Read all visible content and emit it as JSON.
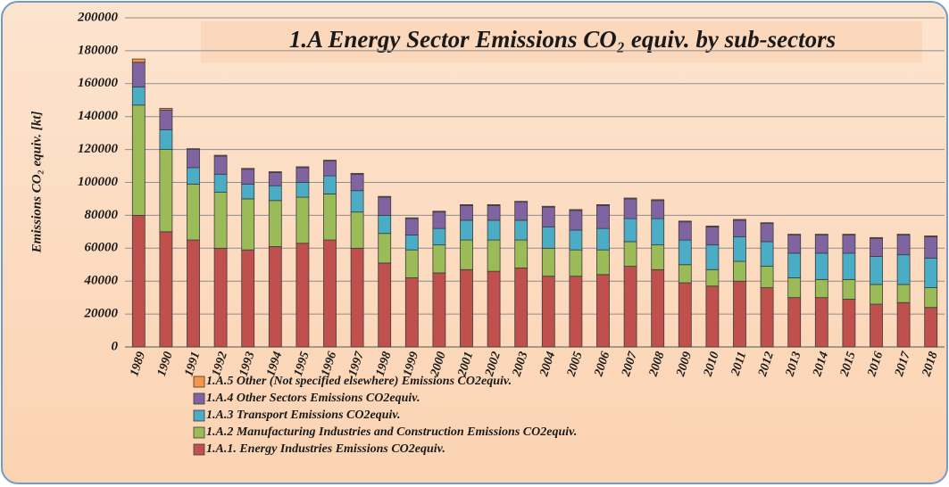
{
  "chart_data": {
    "type": "stacked_bar",
    "title": "1.A Energy Sector Emissions CO₂ equiv. by sub-sectors",
    "y_label": "Emissions CO₂ equiv. [kt]",
    "categories": [
      "1989",
      "1990",
      "1991",
      "1992",
      "1993",
      "1994",
      "1995",
      "1996",
      "1997",
      "1998",
      "1999",
      "2000",
      "2001",
      "2002",
      "2003",
      "2004",
      "2005",
      "2006",
      "2007",
      "2008",
      "2009",
      "2010",
      "2011",
      "2012",
      "2013",
      "2014",
      "2015",
      "2016",
      "2017",
      "2018"
    ],
    "series": [
      {
        "name": "1.A.1. Energy Industries Emissions CO2equiv.",
        "color": "#c0504d",
        "values": [
          80000,
          70000,
          65000,
          60000,
          59000,
          61000,
          63000,
          65000,
          60000,
          51000,
          42000,
          45000,
          47000,
          46000,
          48000,
          43000,
          43000,
          44000,
          49000,
          47000,
          39000,
          37000,
          40000,
          36000,
          30000,
          30000,
          29000,
          26000,
          27000,
          24000
        ]
      },
      {
        "name": "1.A.2 Manufacturing Industries and Construction Emissions CO2equiv.",
        "color": "#9bbb59",
        "values": [
          67000,
          50000,
          34000,
          34000,
          31000,
          28000,
          28000,
          28000,
          22000,
          18000,
          17000,
          17000,
          18000,
          19000,
          17000,
          17000,
          16000,
          15000,
          15000,
          15000,
          11000,
          10000,
          12000,
          13000,
          12000,
          11000,
          12000,
          12000,
          11000,
          12000
        ]
      },
      {
        "name": "1.A.3 Transport Emissions CO2equiv.",
        "color": "#4bacc6",
        "values": [
          11000,
          12000,
          10000,
          11000,
          9000,
          9000,
          9000,
          11000,
          13000,
          11000,
          9000,
          10000,
          12000,
          12000,
          12000,
          13000,
          12000,
          13000,
          14000,
          16000,
          15000,
          15000,
          15000,
          15000,
          15000,
          16000,
          16000,
          17000,
          18000,
          18000
        ]
      },
      {
        "name": "1.A.4 Other Sectors Emissions CO2equiv.",
        "color": "#8064a2",
        "values": [
          15000,
          12000,
          11000,
          11000,
          9000,
          8000,
          9000,
          9000,
          10000,
          11000,
          10000,
          10000,
          9000,
          9000,
          11000,
          12000,
          12000,
          14000,
          12000,
          11000,
          11000,
          11000,
          10000,
          11000,
          11000,
          11000,
          11000,
          11000,
          12000,
          13000
        ]
      },
      {
        "name": "1.A.5 Other (Not specified elsewhere) Emissions CO2equiv.",
        "color": "#f79646",
        "values": [
          2000,
          1000,
          500,
          500,
          500,
          500,
          500,
          500,
          500,
          500,
          500,
          500,
          500,
          500,
          500,
          500,
          500,
          500,
          500,
          500,
          500,
          500,
          500,
          500,
          500,
          500,
          500,
          500,
          500,
          500
        ]
      }
    ],
    "ylim": [
      0,
      200000
    ],
    "yticks": [
      0,
      20000,
      40000,
      60000,
      80000,
      100000,
      120000,
      140000,
      160000,
      180000,
      200000
    ],
    "grid": true
  }
}
